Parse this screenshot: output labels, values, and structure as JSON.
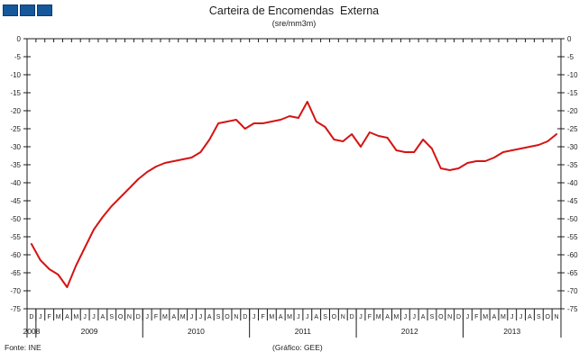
{
  "header": {
    "logo_squares": 3,
    "title": "Carteira de Encomendas  Externa",
    "subtitle": "(sre/mm3m)"
  },
  "footer": {
    "source": "Fonte: INE",
    "credit": "(Gráfico: GEE)"
  },
  "colors": {
    "line": "#d41414",
    "axis": "#1c1c1c",
    "logo_blue": "#15589b",
    "logo_border": "#0b3c70"
  },
  "chart_data": {
    "type": "line",
    "title": "Carteira de Encomendas Externa",
    "subtitle": "(sre/mm3m)",
    "ylabel": "",
    "xlabel": "",
    "ylim": [
      -75,
      0
    ],
    "yticks": [
      0,
      -5,
      -10,
      -15,
      -20,
      -25,
      -30,
      -35,
      -40,
      -45,
      -50,
      -55,
      -60,
      -65,
      -70,
      -75
    ],
    "grid": false,
    "legend": "none",
    "x_month_labels": [
      "D",
      "J",
      "F",
      "M",
      "A",
      "M",
      "J",
      "J",
      "A",
      "S",
      "O",
      "N",
      "D",
      "J",
      "F",
      "M",
      "A",
      "M",
      "J",
      "J",
      "A",
      "S",
      "O",
      "N",
      "D",
      "J",
      "F",
      "M",
      "A",
      "M",
      "J",
      "J",
      "A",
      "S",
      "O",
      "N",
      "D",
      "J",
      "F",
      "M",
      "A",
      "M",
      "J",
      "J",
      "A",
      "S",
      "O",
      "N",
      "D",
      "J",
      "F",
      "M",
      "A",
      "M",
      "J",
      "J",
      "A",
      "S",
      "O",
      "N"
    ],
    "year_groups": [
      {
        "label": "2008",
        "months": 1
      },
      {
        "label": "2009",
        "months": 12
      },
      {
        "label": "2010",
        "months": 12
      },
      {
        "label": "2011",
        "months": 12
      },
      {
        "label": "2012",
        "months": 12
      },
      {
        "label": "2013",
        "months": 11
      }
    ],
    "series": [
      {
        "name": "Carteira de Encomendas Externa",
        "color": "#d41414",
        "values": [
          -57,
          -61.5,
          -64,
          -65.5,
          -69,
          -63,
          -58,
          -53,
          -49.5,
          -46.5,
          -44,
          -41.5,
          -39,
          -37,
          -35.5,
          -34.5,
          -34,
          -33.5,
          -33,
          -31.5,
          -28,
          -23.5,
          -23,
          -22.5,
          -25,
          -23.5,
          -23.5,
          -23,
          -22.5,
          -21.5,
          -22,
          -17.5,
          -23,
          -24.5,
          -28,
          -28.5,
          -26.5,
          -30,
          -26,
          -27,
          -27.5,
          -31,
          -31.5,
          -31.5,
          -28,
          -30.5,
          -36,
          -36.5,
          -36,
          -34.5,
          -34,
          -34,
          -33,
          -31.5,
          -31,
          -30.5,
          -30,
          -29.5,
          -28.5,
          -26.5
        ]
      }
    ]
  }
}
